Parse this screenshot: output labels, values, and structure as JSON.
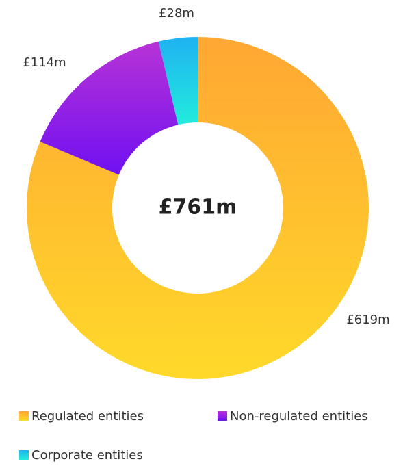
{
  "chart_data": {
    "type": "donut",
    "center_label": "£761m",
    "categories": [
      "Regulated entities",
      "Non-regulated entities",
      "Corporate entities"
    ],
    "values": [
      619,
      114,
      28
    ],
    "value_labels": [
      "£619m",
      "£114m",
      "£28m"
    ],
    "colors": [
      [
        "#ffa733",
        "#ffd92a"
      ],
      [
        "#b733d6",
        "#7010f2"
      ],
      [
        "#1fb2f2",
        "#22ecdc"
      ]
    ],
    "legend": "bottom"
  }
}
